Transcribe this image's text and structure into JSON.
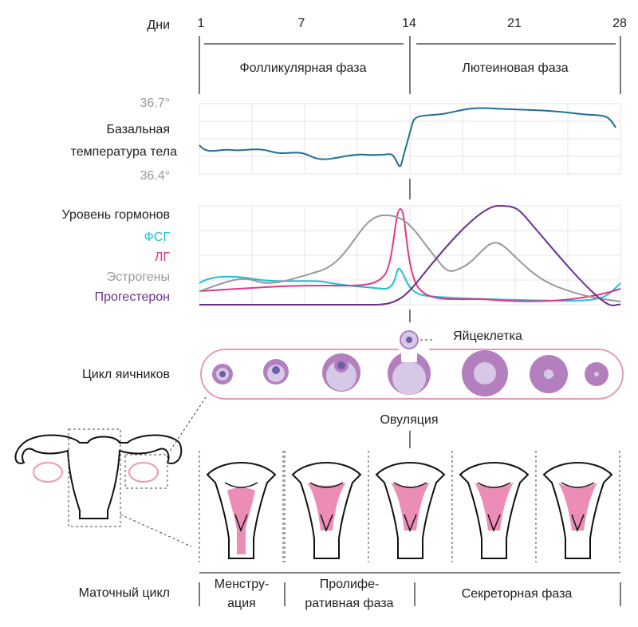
{
  "days": {
    "label": "Дни",
    "ticks": [
      "1",
      "7",
      "14",
      "21",
      "28"
    ]
  },
  "phases": [
    "Фолликулярная фаза",
    "Лютеиновая фаза"
  ],
  "temperature": {
    "high": "36.7°",
    "label_lines": [
      "Базальная",
      "температура тела"
    ],
    "low": "36.4°"
  },
  "hormones": {
    "label": "Уровень гормонов",
    "items": [
      {
        "name": "ФСГ",
        "color": "#1fbfcf"
      },
      {
        "name": "ЛГ",
        "color": "#e0388a"
      },
      {
        "name": "Эстрогены",
        "color": "#999999"
      },
      {
        "name": "Прогестерон",
        "color": "#6b2f8a"
      }
    ]
  },
  "ovary": {
    "label": "Цикл яичников",
    "egg": "Яйцеклетка",
    "ovulation": "Овуляция"
  },
  "uterus": {
    "label": "Маточный цикл",
    "phases": [
      [
        "Менстру-",
        "ация"
      ],
      [
        "Пролифе-",
        "ративная фаза"
      ],
      [
        "Секреторная фаза"
      ]
    ]
  }
}
